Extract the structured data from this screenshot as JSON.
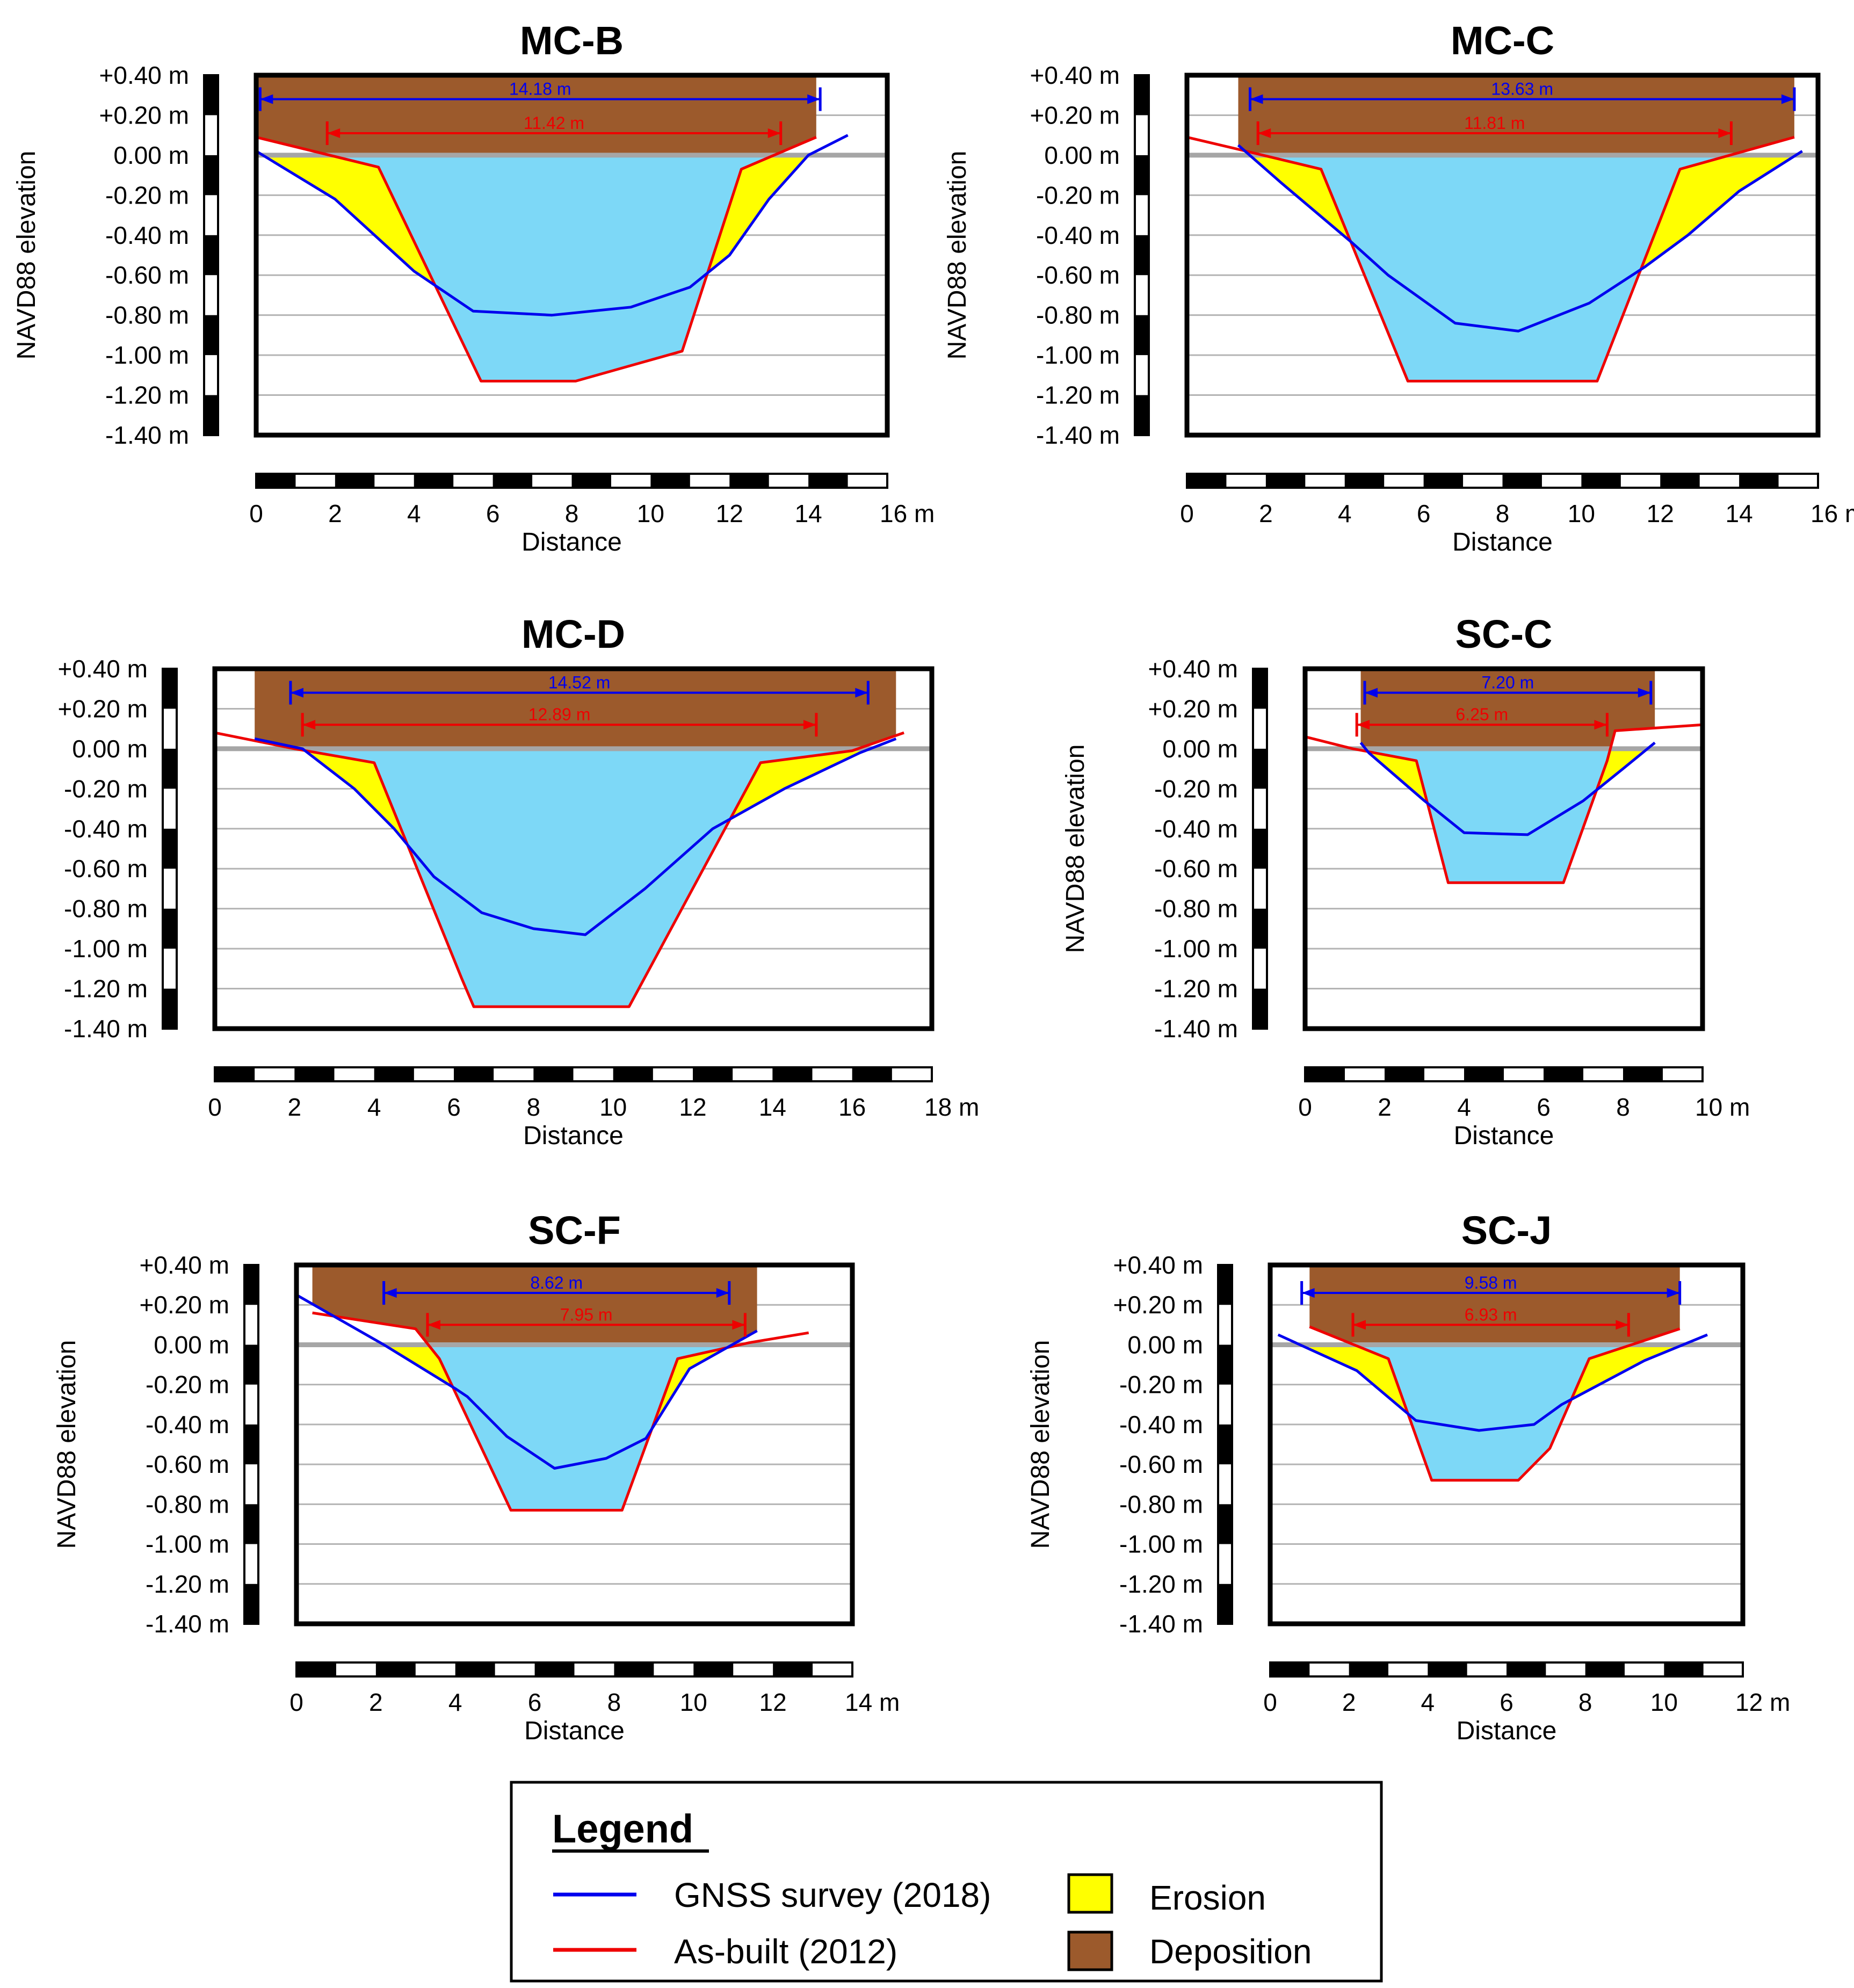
{
  "colors": {
    "gnss": "#0000ee",
    "asbuilt": "#ee0000",
    "water": "#7dd8f7",
    "erosion": "#ffff00",
    "deposition": "#9c5a2c",
    "gridline": "#b4b4b4",
    "waterline": "#a6a6a6"
  },
  "legend": {
    "title": "Legend",
    "gnss_label": "GNSS survey (2018)",
    "asbuilt_label": "As-built (2012)",
    "erosion_label": "Erosion",
    "deposition_label": "Deposition"
  },
  "chart_data": [
    {
      "type": "line",
      "title": "MC-B",
      "xlabel": "Distance",
      "ylabel": "NAVD88 elevation",
      "xlim": [
        0,
        16
      ],
      "xticks": [
        "0",
        "2",
        "4",
        "6",
        "8",
        "10",
        "12",
        "14",
        "16 m"
      ],
      "ylim": [
        -1.4,
        0.4
      ],
      "yticks": [
        "+0.40 m",
        "+0.20 m",
        "0.00 m",
        "-0.20 m",
        "-0.40 m",
        "-0.60 m",
        "-0.80 m",
        "-1.00 m",
        "-1.20 m",
        "-1.40 m"
      ],
      "gnss": [
        [
          0,
          0.02
        ],
        [
          2,
          -0.22
        ],
        [
          4,
          -0.58
        ],
        [
          5.5,
          -0.78
        ],
        [
          7.5,
          -0.8
        ],
        [
          9.5,
          -0.76
        ],
        [
          11,
          -0.66
        ],
        [
          12,
          -0.5
        ],
        [
          13,
          -0.22
        ],
        [
          14,
          0
        ],
        [
          15,
          0.1
        ]
      ],
      "asbuilt": [
        [
          0,
          0.09
        ],
        [
          3.1,
          -0.06
        ],
        [
          5.7,
          -1.13
        ],
        [
          8.1,
          -1.13
        ],
        [
          10.8,
          -0.98
        ],
        [
          12.3,
          -0.07
        ],
        [
          14.2,
          0.09
        ]
      ],
      "gnss_width": {
        "label": "14.18 m",
        "x1": 0.1,
        "x2": 14.3,
        "y": 0.28
      },
      "asbuilt_width": {
        "label": "11.42 m",
        "x1": 1.8,
        "x2": 13.3,
        "y": 0.11
      }
    },
    {
      "type": "line",
      "title": "MC-C",
      "xlabel": "Distance",
      "ylabel": "NAVD88 elevation",
      "xlim": [
        0,
        16
      ],
      "xticks": [
        "0",
        "2",
        "4",
        "6",
        "8",
        "10",
        "12",
        "14",
        "16 m"
      ],
      "ylim": [
        -1.4,
        0.4
      ],
      "yticks": [
        "+0.40 m",
        "+0.20 m",
        "0.00 m",
        "-0.20 m",
        "-0.40 m",
        "-0.60 m",
        "-0.80 m",
        "-1.00 m",
        "-1.20 m",
        "-1.40 m"
      ],
      "gnss": [
        [
          1.3,
          0.05
        ],
        [
          2.4,
          -0.14
        ],
        [
          4.2,
          -0.44
        ],
        [
          5.1,
          -0.6
        ],
        [
          6.8,
          -0.84
        ],
        [
          8.4,
          -0.88
        ],
        [
          10.2,
          -0.74
        ],
        [
          11.6,
          -0.56
        ],
        [
          12.7,
          -0.4
        ],
        [
          14,
          -0.18
        ],
        [
          15.6,
          0.02
        ]
      ],
      "asbuilt": [
        [
          0,
          0.09
        ],
        [
          1.5,
          0.02
        ],
        [
          3.4,
          -0.07
        ],
        [
          5.6,
          -1.13
        ],
        [
          10.4,
          -1.13
        ],
        [
          12.5,
          -0.07
        ],
        [
          15.4,
          0.09
        ]
      ],
      "gnss_width": {
        "label": "13.63 m",
        "x1": 1.6,
        "x2": 15.4,
        "y": 0.28
      },
      "asbuilt_width": {
        "label": "11.81 m",
        "x1": 1.8,
        "x2": 13.8,
        "y": 0.11
      }
    },
    {
      "type": "line",
      "title": "MC-D",
      "xlabel": "Distance",
      "ylabel": "NAVD88 elevation",
      "xlim": [
        0,
        18
      ],
      "xticks": [
        "0",
        "2",
        "4",
        "6",
        "8",
        "10",
        "12",
        "14",
        "16",
        "18 m"
      ],
      "ylim": [
        -1.4,
        0.4
      ],
      "yticks": [
        "+0.40 m",
        "+0.20 m",
        "0.00 m",
        "-0.20 m",
        "-0.40 m",
        "-0.60 m",
        "-0.80 m",
        "-1.00 m",
        "-1.20 m",
        "-1.40 m"
      ],
      "gnss": [
        [
          1,
          0.05
        ],
        [
          2.2,
          0
        ],
        [
          3.5,
          -0.2
        ],
        [
          4.5,
          -0.4
        ],
        [
          5.5,
          -0.64
        ],
        [
          6.7,
          -0.82
        ],
        [
          8,
          -0.9
        ],
        [
          9.3,
          -0.93
        ],
        [
          10.8,
          -0.7
        ],
        [
          12.5,
          -0.4
        ],
        [
          14.3,
          -0.2
        ],
        [
          16.2,
          -0.02
        ],
        [
          17.1,
          0.05
        ]
      ],
      "asbuilt": [
        [
          0,
          0.08
        ],
        [
          2,
          0
        ],
        [
          4,
          -0.07
        ],
        [
          6.2,
          -1.15
        ],
        [
          6.5,
          -1.29
        ],
        [
          10.4,
          -1.29
        ],
        [
          13.7,
          -0.07
        ],
        [
          16,
          -0.01
        ],
        [
          17.3,
          0.08
        ]
      ],
      "gnss_width": {
        "label": "14.52 m",
        "x1": 1.9,
        "x2": 16.4,
        "y": 0.28
      },
      "asbuilt_width": {
        "label": "12.89 m",
        "x1": 2.2,
        "x2": 15.1,
        "y": 0.12
      }
    },
    {
      "type": "line",
      "title": "SC-C",
      "xlabel": "Distance",
      "ylabel": "NAVD88 elevation",
      "xlim": [
        0,
        10
      ],
      "xticks": [
        "0",
        "2",
        "4",
        "6",
        "8",
        "10 m"
      ],
      "ylim": [
        -1.4,
        0.4
      ],
      "yticks": [
        "+0.40 m",
        "+0.20 m",
        "0.00 m",
        "-0.20 m",
        "-0.40 m",
        "-0.60 m",
        "-0.80 m",
        "-1.00 m",
        "-1.20 m",
        "-1.40 m"
      ],
      "gnss": [
        [
          1.4,
          0.03
        ],
        [
          1.6,
          -0.02
        ],
        [
          3,
          -0.26
        ],
        [
          4,
          -0.42
        ],
        [
          5.6,
          -0.43
        ],
        [
          7,
          -0.26
        ],
        [
          8,
          -0.1
        ],
        [
          8.8,
          0.03
        ]
      ],
      "asbuilt": [
        [
          0,
          0.06
        ],
        [
          1.2,
          0
        ],
        [
          2.8,
          -0.06
        ],
        [
          3.6,
          -0.67
        ],
        [
          6.5,
          -0.67
        ],
        [
          7.6,
          -0.06
        ],
        [
          7.8,
          0.09
        ],
        [
          10,
          0.12
        ]
      ],
      "gnss_width": {
        "label": "7.20 m",
        "x1": 1.5,
        "x2": 8.7,
        "y": 0.28
      },
      "asbuilt_width": {
        "label": "6.25 m",
        "x1": 1.3,
        "x2": 7.6,
        "y": 0.12
      }
    },
    {
      "type": "line",
      "title": "SC-F",
      "xlabel": "Distance",
      "ylabel": "NAVD88 elevation",
      "xlim": [
        0,
        14
      ],
      "xticks": [
        "0",
        "2",
        "4",
        "6",
        "8",
        "10",
        "12",
        "14 m"
      ],
      "ylim": [
        -1.4,
        0.4
      ],
      "yticks": [
        "+0.40 m",
        "+0.20 m",
        "0.00 m",
        "-0.20 m",
        "-0.40 m",
        "-0.60 m",
        "-0.80 m",
        "-1.00 m",
        "-1.20 m",
        "-1.40 m"
      ],
      "gnss": [
        [
          0,
          0.25
        ],
        [
          2.2,
          0
        ],
        [
          4,
          -0.22
        ],
        [
          4.3,
          -0.26
        ],
        [
          5.3,
          -0.46
        ],
        [
          6.5,
          -0.62
        ],
        [
          7.8,
          -0.57
        ],
        [
          8.8,
          -0.47
        ],
        [
          9.9,
          -0.12
        ],
        [
          11.6,
          0.07
        ]
      ],
      "asbuilt": [
        [
          0.4,
          0.16
        ],
        [
          3,
          0.08
        ],
        [
          3.6,
          -0.07
        ],
        [
          5.4,
          -0.83
        ],
        [
          8.2,
          -0.83
        ],
        [
          9.6,
          -0.07
        ],
        [
          11.4,
          0.01
        ],
        [
          12.9,
          0.06
        ]
      ],
      "gnss_width": {
        "label": "8.62 m",
        "x1": 2.2,
        "x2": 10.9,
        "y": 0.26
      },
      "asbuilt_width": {
        "label": "7.95 m",
        "x1": 3.3,
        "x2": 11.3,
        "y": 0.1
      }
    },
    {
      "type": "line",
      "title": "SC-J",
      "xlabel": "Distance",
      "ylabel": "NAVD88 elevation",
      "xlim": [
        0,
        12
      ],
      "xticks": [
        "0",
        "2",
        "4",
        "6",
        "8",
        "10",
        "12 m"
      ],
      "ylim": [
        -1.4,
        0.4
      ],
      "yticks": [
        "+0.40 m",
        "+0.20 m",
        "0.00 m",
        "-0.20 m",
        "-0.40 m",
        "-0.60 m",
        "-0.80 m",
        "-1.00 m",
        "-1.20 m",
        "-1.40 m"
      ],
      "gnss": [
        [
          0.2,
          0.05
        ],
        [
          2.2,
          -0.13
        ],
        [
          3.7,
          -0.38
        ],
        [
          5.3,
          -0.43
        ],
        [
          6.7,
          -0.4
        ],
        [
          7.4,
          -0.3
        ],
        [
          9.5,
          -0.08
        ],
        [
          11.1,
          0.05
        ]
      ],
      "asbuilt": [
        [
          1,
          0.09
        ],
        [
          3,
          -0.07
        ],
        [
          4.1,
          -0.68
        ],
        [
          6.3,
          -0.68
        ],
        [
          7.1,
          -0.52
        ],
        [
          8.1,
          -0.07
        ],
        [
          10.4,
          0.08
        ]
      ],
      "gnss_width": {
        "label": "9.58 m",
        "x1": 0.8,
        "x2": 10.4,
        "y": 0.26
      },
      "asbuilt_width": {
        "label": "6.93 m",
        "x1": 2.1,
        "x2": 9.1,
        "y": 0.1
      }
    }
  ]
}
